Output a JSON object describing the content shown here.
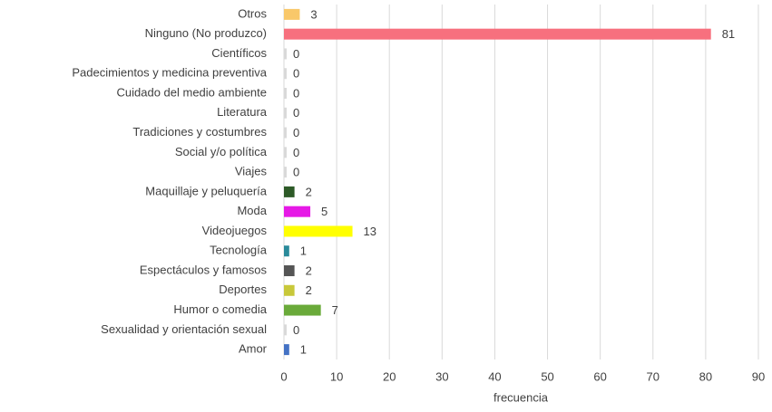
{
  "chart_data": {
    "type": "barh",
    "categories": [
      "Otros",
      "Ninguno (No produzco)",
      "Científicos",
      "Padecimientos y medicina preventiva",
      "Cuidado del medio ambiente",
      "Literatura",
      "Tradiciones y costumbres",
      "Social y/o política",
      "Viajes",
      "Maquillaje y peluquería",
      "Moda",
      "Videojuegos",
      "Tecnología",
      "Espectáculos y famosos",
      "Deportes",
      "Humor o comedia",
      "Sexualidad y orientación sexual",
      "Amor"
    ],
    "values": [
      3,
      81,
      0,
      0,
      0,
      0,
      0,
      0,
      0,
      2,
      5,
      13,
      1,
      2,
      2,
      7,
      0,
      1
    ],
    "colors": [
      "#f9c86a",
      "#f7707e",
      "#d9d9d9",
      "#d9d9d9",
      "#d9d9d9",
      "#d9d9d9",
      "#d9d9d9",
      "#d9d9d9",
      "#d9d9d9",
      "#2d5a27",
      "#e619e6",
      "#ffff00",
      "#2a8a9a",
      "#555555",
      "#c8c83a",
      "#6aaa3a",
      "#d9d9d9",
      "#4472c4"
    ],
    "xlabel": "frecuencia",
    "xlim": [
      0,
      90
    ],
    "xticks": [
      0,
      10,
      20,
      30,
      40,
      50,
      60,
      70,
      80,
      90
    ],
    "grid": true
  }
}
